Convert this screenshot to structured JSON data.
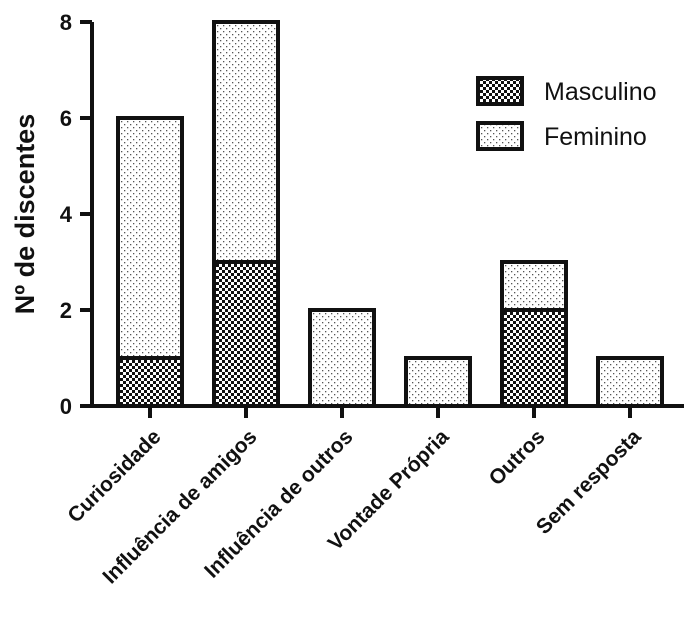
{
  "chart_data": {
    "type": "bar",
    "stacked": true,
    "title": "",
    "xlabel": "",
    "ylabel": "Nº de discentes",
    "ylim": [
      0,
      8
    ],
    "yticks": [
      "0",
      "2",
      "4",
      "6",
      "8"
    ],
    "categories": [
      "Curiosidade",
      "Influência de amigos",
      "Influência de outros",
      "Vontade Própria",
      "Outros",
      "Sem resposta"
    ],
    "series": [
      {
        "name": "Masculino",
        "values": [
          1,
          3,
          0,
          0,
          2,
          0
        ],
        "pattern": "checker",
        "color": "#111111"
      },
      {
        "name": "Feminino",
        "values": [
          5,
          5,
          2,
          1,
          1,
          1
        ],
        "pattern": "dots",
        "color": "#555555"
      }
    ],
    "grid": false,
    "legend_position": "top-right"
  }
}
